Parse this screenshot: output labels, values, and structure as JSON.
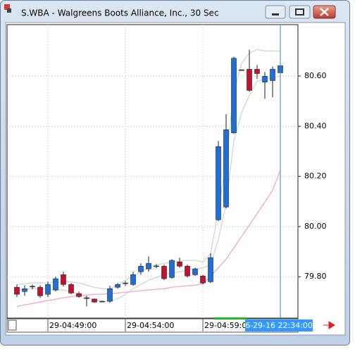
{
  "window_title": "S.WBA - Walgreens Boots Alliance, Inc., 30 Sec",
  "chart_data": {
    "type": "candlestick",
    "categories": [
      null,
      null,
      null,
      null,
      "29-04:49:00",
      null,
      null,
      null,
      null,
      null,
      null,
      null,
      null,
      null,
      "29-04:54:00",
      null,
      null,
      null,
      null,
      null,
      null,
      null,
      null,
      null,
      "29-04:59:00",
      null,
      null,
      null,
      null,
      null,
      null,
      null,
      null,
      null,
      null
    ],
    "open": [
      79.758,
      79.741,
      79.759,
      79.758,
      79.73,
      79.747,
      79.808,
      79.769,
      79.733,
      79.716,
      79.711,
      79.701,
      79.702,
      79.758,
      79.774,
      79.769,
      79.82,
      79.831,
      79.841,
      79.842,
      79.797,
      79.859,
      79.842,
      79.808,
      79.803,
      79.78,
      80.027,
      80.078,
      80.374,
      80.625,
      80.627,
      80.627,
      80.576,
      80.582,
      80.613
    ],
    "high": [
      79.769,
      79.766,
      79.769,
      79.766,
      79.78,
      79.8,
      79.82,
      79.775,
      79.741,
      79.724,
      79.713,
      79.705,
      79.764,
      79.775,
      79.783,
      79.82,
      79.853,
      79.881,
      79.85,
      79.848,
      79.87,
      79.876,
      79.848,
      79.836,
      79.808,
      79.893,
      80.341,
      80.448,
      80.677,
      80.627,
      80.705,
      80.644,
      80.616,
      80.638,
      80.663
    ],
    "low": [
      79.719,
      79.724,
      79.75,
      79.716,
      79.719,
      79.741,
      79.761,
      79.73,
      79.716,
      79.682,
      79.696,
      79.699,
      79.696,
      79.752,
      79.764,
      79.764,
      79.808,
      79.82,
      79.834,
      79.786,
      79.792,
      79.836,
      79.797,
      79.803,
      79.769,
      79.775,
      80.022,
      80.072,
      80.369,
      80.621,
      80.537,
      80.588,
      80.509,
      80.515,
      80.596
    ],
    "close": [
      79.73,
      79.752,
      79.762,
      79.724,
      79.769,
      79.792,
      79.769,
      79.735,
      79.721,
      79.713,
      79.699,
      79.702,
      79.752,
      79.769,
      79.775,
      79.808,
      79.842,
      79.853,
      79.843,
      79.792,
      79.865,
      79.842,
      79.803,
      79.831,
      79.775,
      79.876,
      80.319,
      80.386,
      80.671,
      80.623,
      80.543,
      80.61,
      80.599,
      80.627,
      80.641
    ],
    "up_color": "#1e6fd9",
    "down_color": "#c8102e",
    "overlays": [
      {
        "color": "#c5dec5",
        "values": [
          79.769,
          79.772,
          79.775,
          79.775,
          79.775,
          79.778,
          79.78,
          79.78,
          79.775,
          79.766,
          79.758,
          79.752,
          79.752,
          79.766,
          79.786,
          79.803,
          79.82,
          79.836,
          79.848,
          79.853,
          79.859,
          79.862,
          79.865,
          79.865,
          79.859,
          79.893,
          80.061,
          80.257,
          80.538,
          80.65,
          80.692,
          80.706,
          80.7,
          80.7,
          80.7
        ]
      },
      {
        "color": "#c5dec5",
        "values": [
          79.747,
          79.75,
          79.752,
          79.752,
          79.75,
          79.747,
          79.747,
          79.741,
          79.73,
          79.719,
          79.707,
          79.702,
          79.702,
          79.713,
          79.73,
          79.752,
          79.769,
          79.786,
          79.797,
          79.808,
          79.814,
          79.82,
          79.825,
          79.831,
          79.836,
          79.848,
          79.949,
          80.089,
          80.341,
          80.454,
          80.524,
          80.58,
          80.588,
          80.594,
          80.599
        ]
      },
      {
        "color": "#f4a6c6",
        "values": [
          79.682,
          79.688,
          79.693,
          79.699,
          79.705,
          79.71,
          79.716,
          79.721,
          79.724,
          79.727,
          79.73,
          79.73,
          79.733,
          79.735,
          79.738,
          79.741,
          79.744,
          79.747,
          79.75,
          79.752,
          79.758,
          79.761,
          79.764,
          79.766,
          79.772,
          79.803,
          79.836,
          79.87,
          79.915,
          79.96,
          80.005,
          80.052,
          80.097,
          80.145,
          80.224
        ]
      }
    ],
    "ylim": [
      79.635,
      80.805
    ],
    "yticks": [
      {
        "value": 79.8,
        "label": "79.80"
      },
      {
        "value": 80.0,
        "label": "80.00"
      },
      {
        "value": 80.2,
        "label": "80.20"
      },
      {
        "value": 80.4,
        "label": "80.40"
      },
      {
        "value": 80.6,
        "label": "80.60"
      }
    ],
    "grid": true,
    "cursor_index": 34,
    "cursor_label": "6-29-16 22:34:00"
  }
}
